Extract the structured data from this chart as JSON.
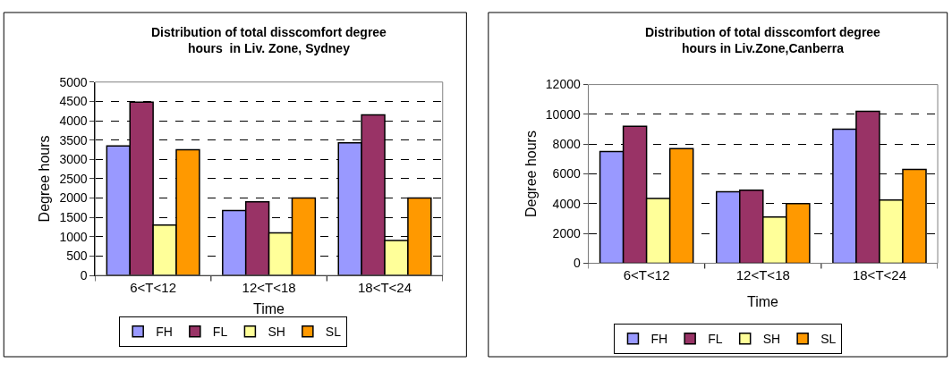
{
  "chart_data": [
    {
      "type": "bar",
      "title": "Distribution of total disscomfort degree hours  in Liv. Zone, Sydney",
      "xlabel": "Time",
      "ylabel": "Degree hours",
      "categories": [
        "6<T<12",
        "12<T<18",
        "18<T<24"
      ],
      "series": [
        {
          "name": "FH",
          "color": "#9999ff",
          "values": [
            3350,
            1680,
            3430
          ]
        },
        {
          "name": "FL",
          "color": "#993366",
          "values": [
            4480,
            1900,
            4150
          ]
        },
        {
          "name": "SH",
          "color": "#ffff99",
          "values": [
            1300,
            1100,
            900
          ]
        },
        {
          "name": "SL",
          "color": "#ff9900",
          "values": [
            3250,
            2000,
            2000
          ]
        }
      ],
      "ylim": [
        0,
        5000
      ],
      "yticks": [
        0,
        500,
        1000,
        1500,
        2000,
        2500,
        3000,
        3500,
        4000,
        4500,
        5000
      ],
      "grid": "y",
      "line_style": "dashed",
      "legend": "bottom"
    },
    {
      "type": "bar",
      "title": "Distribution of total disscomfort degree hours in Liv.Zone,Canberra",
      "xlabel": "Time",
      "ylabel": "Degree hours",
      "categories": [
        "6<T<12",
        "12<T<18",
        "18<T<24"
      ],
      "series": [
        {
          "name": "FH",
          "color": "#9999ff",
          "values": [
            7500,
            4800,
            9000
          ]
        },
        {
          "name": "FL",
          "color": "#993366",
          "values": [
            9200,
            4900,
            10200
          ]
        },
        {
          "name": "SH",
          "color": "#ffff99",
          "values": [
            4350,
            3100,
            4250
          ]
        },
        {
          "name": "SL",
          "color": "#ff9900",
          "values": [
            7700,
            4000,
            6300
          ]
        }
      ],
      "ylim": [
        0,
        12000
      ],
      "yticks": [
        0,
        2000,
        4000,
        6000,
        8000,
        10000,
        12000
      ],
      "grid": "y",
      "line_style": "dashed",
      "legend": "bottom"
    }
  ]
}
